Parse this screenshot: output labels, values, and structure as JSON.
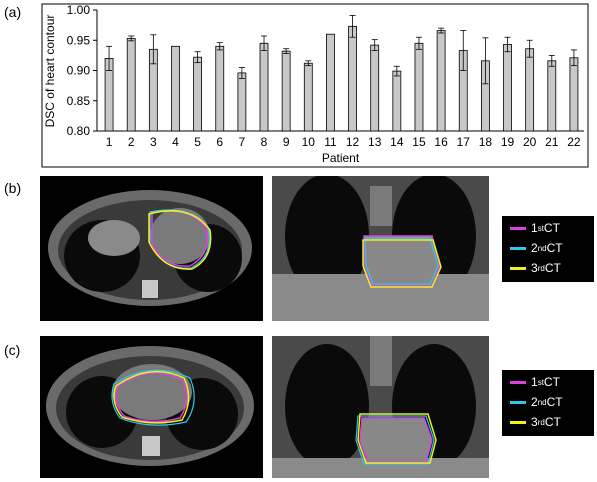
{
  "panels": {
    "a": "(a)",
    "b": "(b)",
    "c": "(c)"
  },
  "chart_data": {
    "type": "bar",
    "ylabel": "DSC of heart contour",
    "xlabel": "Patient",
    "ylim": [
      0.8,
      1.0
    ],
    "yticks": [
      "0.80",
      "0.85",
      "0.90",
      "0.95",
      "1.00"
    ],
    "ytick_values": [
      0.8,
      0.85,
      0.9,
      0.95,
      1.0
    ],
    "categories": [
      "1",
      "2",
      "3",
      "4",
      "5",
      "6",
      "7",
      "8",
      "9",
      "10",
      "11",
      "12",
      "13",
      "14",
      "15",
      "16",
      "17",
      "18",
      "19",
      "20",
      "21",
      "22"
    ],
    "values": [
      0.92,
      0.953,
      0.935,
      0.94,
      0.922,
      0.94,
      0.896,
      0.945,
      0.932,
      0.912,
      0.96,
      0.973,
      0.942,
      0.899,
      0.945,
      0.966,
      0.933,
      0.916,
      0.943,
      0.936,
      0.916,
      0.921
    ],
    "errors": [
      0.02,
      0.004,
      0.024,
      0.0,
      0.009,
      0.006,
      0.009,
      0.012,
      0.004,
      0.004,
      0.0,
      0.018,
      0.009,
      0.008,
      0.01,
      0.004,
      0.033,
      0.038,
      0.012,
      0.014,
      0.009,
      0.013
    ],
    "bar_color": "#c8c8c8",
    "grid": false
  },
  "legend_b": [
    {
      "base": "1",
      "sup": "st",
      "rest": " CT",
      "color": "#e040e0"
    },
    {
      "base": "2",
      "sup": "nd",
      "rest": " CT",
      "color": "#30c8e8"
    },
    {
      "base": "3",
      "sup": "rd",
      "rest": " CT",
      "color": "#f0f020"
    }
  ],
  "legend_c": [
    {
      "base": "1",
      "sup": "st",
      "rest": " CT",
      "color": "#e040e0"
    },
    {
      "base": "2",
      "sup": "nd",
      "rest": " CT",
      "color": "#30c8e8"
    },
    {
      "base": "3",
      "sup": "rd",
      "rest": " CT",
      "color": "#f0f020"
    }
  ]
}
